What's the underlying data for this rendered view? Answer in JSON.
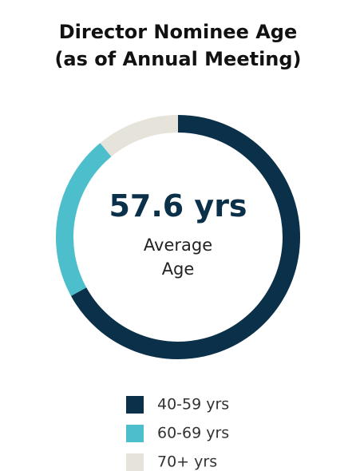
{
  "chart_data": {
    "type": "donut",
    "title": "Director Nominee Age",
    "subtitle": "(as of Annual Meeting)",
    "center_value": "57.6 yrs",
    "center_label": "Average Age",
    "categories": [
      "40-59 yrs",
      "60-69 yrs",
      "70+ yrs"
    ],
    "values": [
      67,
      22,
      11
    ],
    "colors": [
      "#0b3049",
      "#4dbfcc",
      "#e6e3da"
    ]
  }
}
